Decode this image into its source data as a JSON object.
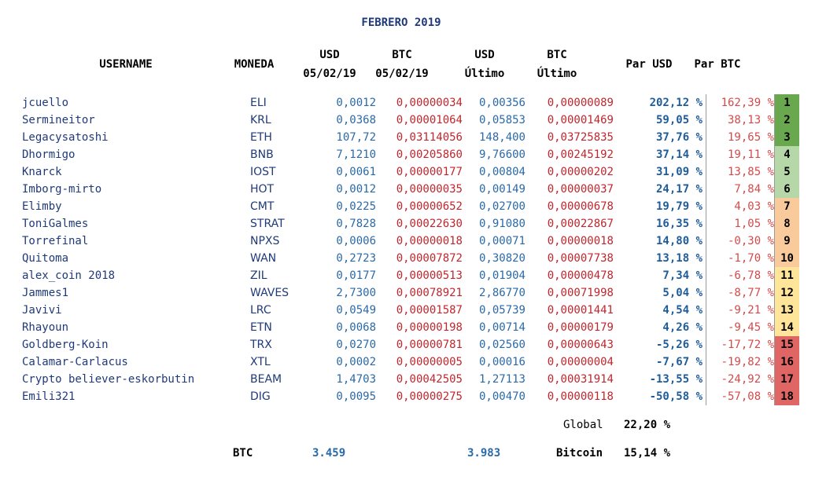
{
  "title": "FEBRERO 2019",
  "headers": {
    "username": "USERNAME",
    "moneda": "MONEDA",
    "usd_top": "USD",
    "usd_bottom": "05/02/19",
    "btc_top": "BTC",
    "btc_bottom": "05/02/19",
    "usdl_top": "USD",
    "usdl_bottom": "Último",
    "btcl_top": "BTC",
    "btcl_bottom": "Último",
    "par_usd": "Par USD",
    "par_btc": "Par BTC"
  },
  "rank_colors": {
    "1": "#6aa84f",
    "2": "#6aa84f",
    "3": "#6aa84f",
    "4": "#b6d7a8",
    "5": "#b6d7a8",
    "6": "#b6d7a8",
    "7": "#f9cb9c",
    "8": "#f9cb9c",
    "9": "#f9cb9c",
    "10": "#f9cb9c",
    "11": "#ffe599",
    "12": "#ffe599",
    "13": "#ffe599",
    "14": "#ffe599",
    "15": "#e06666",
    "16": "#e06666",
    "17": "#e06666",
    "18": "#e06666"
  },
  "rows": [
    {
      "user": "jcuello",
      "coin": "ELI",
      "usd": "0,0012",
      "btc": "0,00000034",
      "usd_last": "0,00356",
      "btc_last": "0,00000089",
      "par_usd": "202,12 %",
      "par_btc": "162,39 %",
      "rank": "1"
    },
    {
      "user": "Sermineitor",
      "coin": "KRL",
      "usd": "0,0368",
      "btc": "0,00001064",
      "usd_last": "0,05853",
      "btc_last": "0,00001469",
      "par_usd": "59,05 %",
      "par_btc": "38,13 %",
      "rank": "2"
    },
    {
      "user": "Legacysatoshi",
      "coin": "ETH",
      "usd": "107,72",
      "btc": "0,03114056",
      "usd_last": "148,400",
      "btc_last": "0,03725835",
      "par_usd": "37,76 %",
      "par_btc": "19,65 %",
      "rank": "3"
    },
    {
      "user": "Dhormigo",
      "coin": "BNB",
      "usd": "7,1210",
      "btc": "0,00205860",
      "usd_last": "9,76600",
      "btc_last": "0,00245192",
      "par_usd": "37,14 %",
      "par_btc": "19,11 %",
      "rank": "4"
    },
    {
      "user": "Knarck",
      "coin": "IOST",
      "usd": "0,0061",
      "btc": "0,00000177",
      "usd_last": "0,00804",
      "btc_last": "0,00000202",
      "par_usd": "31,09 %",
      "par_btc": "13,85 %",
      "rank": "5"
    },
    {
      "user": "Imborg-mirto",
      "coin": "HOT",
      "usd": "0,0012",
      "btc": "0,00000035",
      "usd_last": "0,00149",
      "btc_last": "0,00000037",
      "par_usd": "24,17 %",
      "par_btc": "7,84 %",
      "rank": "6"
    },
    {
      "user": "Elimby",
      "coin": "CMT",
      "usd": "0,0225",
      "btc": "0,00000652",
      "usd_last": "0,02700",
      "btc_last": "0,00000678",
      "par_usd": "19,79 %",
      "par_btc": "4,03 %",
      "rank": "7"
    },
    {
      "user": "ToniGalmes",
      "coin": "STRAT",
      "usd": "0,7828",
      "btc": "0,00022630",
      "usd_last": "0,91080",
      "btc_last": "0,00022867",
      "par_usd": "16,35 %",
      "par_btc": "1,05 %",
      "rank": "8"
    },
    {
      "user": "Torrefinal",
      "coin": "NPXS",
      "usd": "0,0006",
      "btc": "0,00000018",
      "usd_last": "0,00071",
      "btc_last": "0,00000018",
      "par_usd": "14,80 %",
      "par_btc": "-0,30 %",
      "rank": "9"
    },
    {
      "user": "Quitoma",
      "coin": "WAN",
      "usd": "0,2723",
      "btc": "0,00007872",
      "usd_last": "0,30820",
      "btc_last": "0,00007738",
      "par_usd": "13,18 %",
      "par_btc": "-1,70 %",
      "rank": "10"
    },
    {
      "user": "alex_coin 2018",
      "coin": "ZIL",
      "usd": "0,0177",
      "btc": "0,00000513",
      "usd_last": "0,01904",
      "btc_last": "0,00000478",
      "par_usd": "7,34 %",
      "par_btc": "-6,78 %",
      "rank": "11"
    },
    {
      "user": "Jammes1",
      "coin": "WAVES",
      "usd": "2,7300",
      "btc": "0,00078921",
      "usd_last": "2,86770",
      "btc_last": "0,00071998",
      "par_usd": "5,04 %",
      "par_btc": "-8,77 %",
      "rank": "12"
    },
    {
      "user": "Javivi",
      "coin": "LRC",
      "usd": "0,0549",
      "btc": "0,00001587",
      "usd_last": "0,05739",
      "btc_last": "0,00001441",
      "par_usd": "4,54 %",
      "par_btc": "-9,21 %",
      "rank": "13"
    },
    {
      "user": "Rhayoun",
      "coin": "ETN",
      "usd": "0,0068",
      "btc": "0,00000198",
      "usd_last": "0,00714",
      "btc_last": "0,00000179",
      "par_usd": "4,26 %",
      "par_btc": "-9,45 %",
      "rank": "14"
    },
    {
      "user": "Goldberg-Koin",
      "coin": "TRX",
      "usd": "0,0270",
      "btc": "0,00000781",
      "usd_last": "0,02560",
      "btc_last": "0,00000643",
      "par_usd": "-5,26 %",
      "par_btc": "-17,72 %",
      "rank": "15"
    },
    {
      "user": "Calamar-Carlacus",
      "coin": "XTL",
      "usd": "0,0002",
      "btc": "0,00000005",
      "usd_last": "0,00016",
      "btc_last": "0,00000004",
      "par_usd": "-7,67 %",
      "par_btc": "-19,82 %",
      "rank": "16"
    },
    {
      "user": "Crypto believer-eskorbutin",
      "coin": "BEAM",
      "usd": "1,4703",
      "btc": "0,00042505",
      "usd_last": "1,27113",
      "btc_last": "0,00031914",
      "par_usd": "-13,55 %",
      "par_btc": "-24,92 %",
      "rank": "17"
    },
    {
      "user": "Emili321",
      "coin": "DIG",
      "usd": "0,0095",
      "btc": "0,00000275",
      "usd_last": "0,00470",
      "btc_last": "0,00000118",
      "par_usd": "-50,58 %",
      "par_btc": "-57,08 %",
      "rank": "18"
    }
  ],
  "footer": {
    "global_label": "Global",
    "global_value": "22,20 %",
    "btc_label": "BTC",
    "btc_usd_start": "3.459",
    "btc_usd_last": "3.983",
    "bitcoin_label": "Bitcoin",
    "bitcoin_value": "15,14 %"
  }
}
